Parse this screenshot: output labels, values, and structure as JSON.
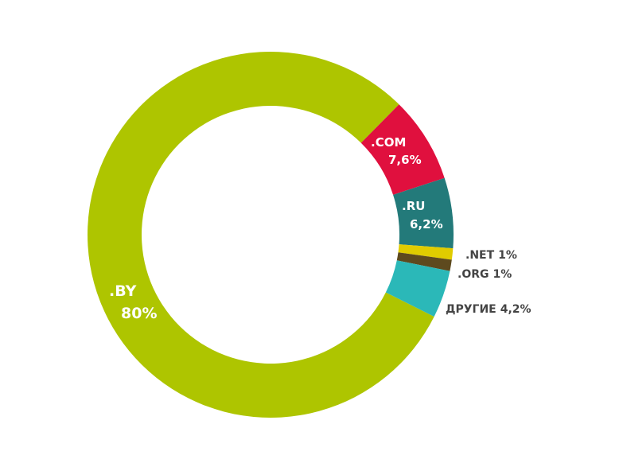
{
  "chart_data": {
    "type": "donut",
    "categories": [
      ".BY",
      ".COM",
      ".RU",
      ".NET",
      ".ORG",
      "ДРУГИЕ"
    ],
    "values": [
      80,
      7.6,
      6.2,
      1,
      1,
      4.2
    ],
    "value_labels": [
      "80%",
      "7,6%",
      "6,2%",
      "1%",
      "1%",
      "4,2%"
    ],
    "colors": [
      "#aec500",
      "#e0103e",
      "#237a7a",
      "#e0cc00",
      "#5e4a1e",
      "#2bb8b8"
    ]
  }
}
